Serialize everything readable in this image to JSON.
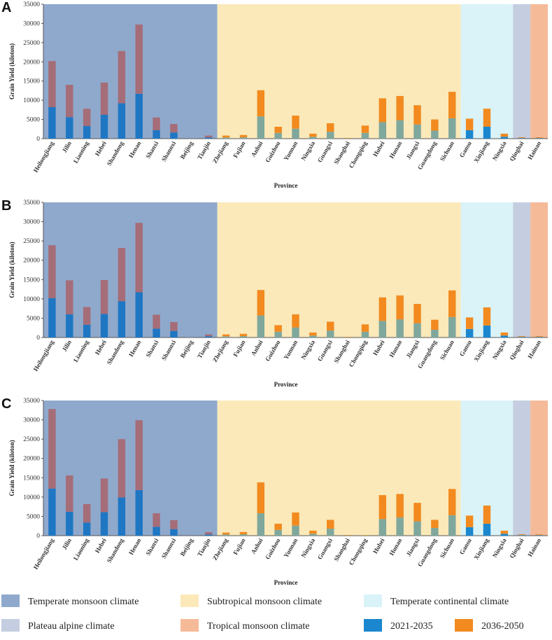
{
  "colors": {
    "temperate_monsoon": "#8fa9cc",
    "subtropical_monsoon": "#fbe9b9",
    "temperate_continental": "#d9f3f8",
    "plateau_alpine": "#c5cde0",
    "tropical_monsoon": "#f5ba98",
    "seg_2021_2035": "#1b87cf",
    "seg_2036_2050": "#f28a1f",
    "seg_2021_2035_temperate": "#1f77c4",
    "seg_2036_2050_temperate": "#a56d78",
    "seg_2021_2035_subtropical": "#7fa79c",
    "axis": "#555555"
  },
  "legend": {
    "items": [
      {
        "label": "Temperate monsoon climate",
        "color_key": "temperate_monsoon"
      },
      {
        "label": "Subtropical monsoon climate",
        "color_key": "subtropical_monsoon"
      },
      {
        "label": "Temperate continental climate",
        "color_key": "temperate_continental"
      },
      {
        "label": "Plateau alpine climate",
        "color_key": "plateau_alpine"
      },
      {
        "label": "Tropical monsoon climate",
        "color_key": "tropical_monsoon"
      },
      {
        "label": "2021-2035",
        "color_key": "seg_2021_2035"
      },
      {
        "label": "2036-2050",
        "color_key": "seg_2036_2050"
      }
    ]
  },
  "chart_data": [
    {
      "panel": "A",
      "type": "bar",
      "stacked": true,
      "xlabel": "Province",
      "ylabel": "Grain Yield (kiloton)",
      "ylim": [
        0,
        35000
      ],
      "yticks": [
        0,
        5000,
        10000,
        15000,
        20000,
        25000,
        30000,
        35000
      ],
      "categories": [
        "Heilongjiang",
        "Jilin",
        "Liaoning",
        "Hebei",
        "Shandong",
        "Henan",
        "Shanxi",
        "Shannxi",
        "Beijing",
        "Tianjin",
        "Zhejiang",
        "Fujian",
        "Anhui",
        "Guizhou",
        "Yunnan",
        "Ningxia",
        "Guangxi",
        "Shanghai",
        "Chongqing",
        "Hubei",
        "Hunan",
        "Jiangxi",
        "Guangdong",
        "Sichuan",
        "Gansu",
        "Xinjiang",
        "Ningxia",
        "Qinghai",
        "Hainan"
      ],
      "climate_zones": [
        {
          "name": "Temperate monsoon climate",
          "start": 0,
          "end": 9,
          "color_key": "temperate_monsoon"
        },
        {
          "name": "Subtropical monsoon climate",
          "start": 10,
          "end": 23,
          "color_key": "subtropical_monsoon"
        },
        {
          "name": "Temperate continental climate",
          "start": 24,
          "end": 26,
          "color_key": "temperate_continental"
        },
        {
          "name": "Plateau alpine climate",
          "start": 27,
          "end": 27,
          "color_key": "plateau_alpine"
        },
        {
          "name": "Tropical monsoon climate",
          "start": 28,
          "end": 28,
          "color_key": "tropical_monsoon"
        }
      ],
      "series": [
        {
          "name": "2021-2035",
          "values": [
            8200,
            5600,
            3300,
            6200,
            9200,
            11700,
            2200,
            1600,
            50,
            300,
            300,
            350,
            5800,
            1500,
            2600,
            500,
            1800,
            80,
            1500,
            4300,
            4800,
            3700,
            2100,
            5300,
            2200,
            3100,
            500,
            150,
            150
          ]
        },
        {
          "name": "2036-2050",
          "values": [
            12000,
            8400,
            4500,
            8400,
            13600,
            18000,
            3300,
            2200,
            60,
            500,
            500,
            600,
            6800,
            1600,
            3400,
            800,
            2200,
            100,
            1900,
            6200,
            6300,
            5000,
            2900,
            6900,
            3000,
            4700,
            800,
            200,
            200
          ]
        }
      ]
    },
    {
      "panel": "B",
      "type": "bar",
      "stacked": true,
      "xlabel": "Province",
      "ylabel": "Grain Yield (kiloton)",
      "ylim": [
        0,
        35000
      ],
      "yticks": [
        0,
        5000,
        10000,
        15000,
        20000,
        25000,
        30000,
        35000
      ],
      "categories": [
        "Heilongjiang",
        "Jilin",
        "Liaoning",
        "Hebei",
        "Shandong",
        "Henan",
        "Shanxi",
        "Shannxi",
        "Beijing",
        "Tianjin",
        "Zhejiang",
        "Fujian",
        "Anhui",
        "Guizhou",
        "Yunnan",
        "Ningxia",
        "Guangxi",
        "Shanghai",
        "Chongqing",
        "Hubei",
        "Hunan",
        "Jiangxi",
        "Guangdong",
        "Sichuan",
        "Gansu",
        "Xinjiang",
        "Ningxia",
        "Qinghai",
        "Hainan"
      ],
      "climate_zones": [
        {
          "name": "Temperate monsoon climate",
          "start": 0,
          "end": 9,
          "color_key": "temperate_monsoon"
        },
        {
          "name": "Subtropical monsoon climate",
          "start": 10,
          "end": 23,
          "color_key": "subtropical_monsoon"
        },
        {
          "name": "Temperate continental climate",
          "start": 24,
          "end": 26,
          "color_key": "temperate_continental"
        },
        {
          "name": "Plateau alpine climate",
          "start": 27,
          "end": 27,
          "color_key": "plateau_alpine"
        },
        {
          "name": "Tropical monsoon climate",
          "start": 28,
          "end": 28,
          "color_key": "tropical_monsoon"
        }
      ],
      "series": [
        {
          "name": "2021-2035",
          "values": [
            10200,
            6000,
            3300,
            6100,
            9400,
            11700,
            2300,
            1700,
            50,
            300,
            300,
            350,
            5700,
            1500,
            2600,
            500,
            1800,
            80,
            1500,
            4300,
            4700,
            3700,
            2000,
            5300,
            2200,
            3100,
            500,
            150,
            150
          ]
        },
        {
          "name": "2036-2050",
          "values": [
            13700,
            8800,
            4600,
            8800,
            13800,
            18000,
            3600,
            2300,
            60,
            500,
            500,
            600,
            6600,
            1700,
            3400,
            800,
            2300,
            100,
            1900,
            6100,
            6200,
            5000,
            2600,
            6900,
            3000,
            4700,
            800,
            200,
            200
          ]
        }
      ]
    },
    {
      "panel": "C",
      "type": "bar",
      "stacked": true,
      "xlabel": "Province",
      "ylabel": "Grain Yield (kiloton)",
      "ylim": [
        0,
        35000
      ],
      "yticks": [
        0,
        5000,
        10000,
        15000,
        20000,
        25000,
        30000,
        35000
      ],
      "categories": [
        "Heilongjiang",
        "Jilin",
        "Liaoning",
        "Hebei",
        "Shandong",
        "Henan",
        "Shanxi",
        "Shannxi",
        "Beijing",
        "Tianjin",
        "Zhejiang",
        "Fujian",
        "Anhui",
        "Guizhou",
        "Yunnan",
        "Ningxia",
        "Guangxi",
        "Shanghai",
        "Chongqing",
        "Hubei",
        "Hunan",
        "Jiangxi",
        "Guangdong",
        "Sichuan",
        "Gansu",
        "Xinjiang",
        "Ningxia",
        "Qinghai",
        "Hainan"
      ],
      "climate_zones": [
        {
          "name": "Temperate monsoon climate",
          "start": 0,
          "end": 9,
          "color_key": "temperate_monsoon"
        },
        {
          "name": "Subtropical monsoon climate",
          "start": 10,
          "end": 23,
          "color_key": "subtropical_monsoon"
        },
        {
          "name": "Temperate continental climate",
          "start": 24,
          "end": 26,
          "color_key": "temperate_continental"
        },
        {
          "name": "Plateau alpine climate",
          "start": 27,
          "end": 27,
          "color_key": "plateau_alpine"
        },
        {
          "name": "Tropical monsoon climate",
          "start": 28,
          "end": 28,
          "color_key": "tropical_monsoon"
        }
      ],
      "series": [
        {
          "name": "2021-2035",
          "values": [
            12200,
            6200,
            3400,
            6100,
            9900,
            11800,
            2300,
            1700,
            50,
            300,
            300,
            350,
            5800,
            1500,
            2600,
            500,
            1800,
            80,
            60,
            4300,
            4700,
            3700,
            2000,
            5300,
            2200,
            3100,
            500,
            150,
            150
          ]
        },
        {
          "name": "2036-2050",
          "values": [
            20600,
            9400,
            4800,
            8700,
            15100,
            18100,
            3500,
            2300,
            60,
            600,
            500,
            600,
            8000,
            1600,
            3400,
            800,
            2300,
            100,
            80,
            6200,
            6100,
            4800,
            2100,
            6800,
            3000,
            4700,
            800,
            200,
            200
          ]
        }
      ]
    }
  ]
}
